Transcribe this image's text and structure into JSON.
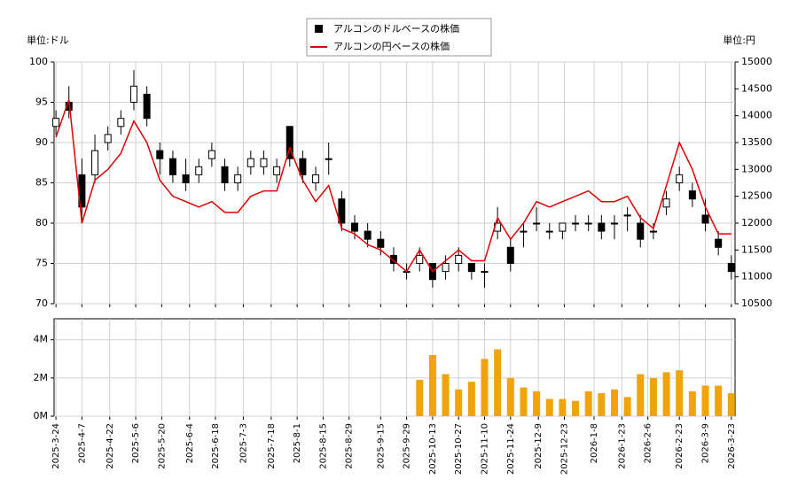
{
  "chart_data": [
    {
      "type": "candlestick",
      "legend_loc": "upper center",
      "ylabel": "単位:ドル",
      "y2label": "単位:円",
      "grid": true,
      "xlim": [
        "2025-03-23",
        "2026-03-25"
      ],
      "ylim": [
        70,
        100
      ],
      "yticks": [
        70,
        75,
        80,
        85,
        90,
        95,
        100
      ],
      "y2lim": [
        10500,
        15000
      ],
      "y2ticks": [
        10500,
        11000,
        11500,
        12000,
        12500,
        13000,
        13500,
        14000,
        14500,
        15000
      ],
      "x": [
        "2025-03-24",
        "2025-03-31",
        "2025-04-07",
        "2025-04-14",
        "2025-04-21",
        "2025-04-28",
        "2025-05-05",
        "2025-05-12",
        "2025-05-19",
        "2025-05-26",
        "2025-06-02",
        "2025-06-09",
        "2025-06-16",
        "2025-06-23",
        "2025-06-30",
        "2025-07-07",
        "2025-07-14",
        "2025-07-21",
        "2025-07-28",
        "2025-08-04",
        "2025-08-11",
        "2025-08-18",
        "2025-08-25",
        "2025-09-01",
        "2025-09-08",
        "2025-09-15",
        "2025-09-22",
        "2025-09-29",
        "2025-10-06",
        "2025-10-13",
        "2025-10-20",
        "2025-10-27",
        "2025-11-03",
        "2025-11-10",
        "2025-11-17",
        "2025-11-24",
        "2025-12-01",
        "2025-12-08",
        "2025-12-15",
        "2025-12-22",
        "2025-12-29",
        "2026-01-05",
        "2026-01-12",
        "2026-01-19",
        "2026-01-26",
        "2026-02-02",
        "2026-02-09",
        "2026-02-16",
        "2026-02-23",
        "2026-03-02",
        "2026-03-09",
        "2026-03-16",
        "2026-03-23"
      ],
      "series": [
        {
          "name": "アルコンのドルベースの株価",
          "color": "#000000",
          "open": [
            92,
            95,
            86,
            86,
            90,
            92,
            95,
            96,
            89,
            88,
            86,
            86,
            88,
            87,
            85,
            87,
            87,
            86,
            92,
            88,
            85,
            88,
            83,
            80,
            79,
            78,
            76,
            74,
            75,
            75,
            74,
            75,
            75,
            74,
            79,
            77,
            79,
            80,
            79,
            79,
            80,
            80,
            80,
            80,
            81,
            80,
            79,
            82,
            85,
            84,
            81,
            78,
            75
          ],
          "high": [
            94,
            97,
            88,
            91,
            92,
            94,
            99,
            97,
            90,
            89,
            88,
            88,
            90,
            88,
            87,
            89,
            89,
            88,
            92,
            89,
            87,
            90,
            84,
            81,
            80,
            79,
            77,
            75,
            77,
            75,
            76,
            77,
            75,
            75,
            82,
            78,
            80,
            82,
            80,
            80,
            81,
            81,
            81,
            81,
            82,
            81,
            80,
            84,
            87,
            85,
            83,
            79,
            76
          ],
          "low": [
            91,
            93,
            80,
            85,
            89,
            91,
            94,
            92,
            86,
            85,
            84,
            85,
            87,
            84,
            84,
            86,
            86,
            85,
            87,
            85,
            84,
            86,
            79,
            78,
            77,
            76,
            74,
            73,
            74,
            72,
            73,
            74,
            73,
            72,
            78,
            74,
            77,
            79,
            78,
            78,
            79,
            79,
            78,
            78,
            79,
            77,
            78,
            81,
            84,
            82,
            79,
            76,
            73
          ],
          "close": [
            93,
            94,
            82,
            89,
            91,
            93,
            97,
            93,
            88,
            86,
            85,
            87,
            89,
            85,
            86,
            88,
            88,
            87,
            88,
            86,
            86,
            88,
            80,
            79,
            78,
            77,
            75,
            74,
            76,
            73,
            75,
            76,
            74,
            74,
            80,
            75,
            79,
            80,
            79,
            80,
            80,
            80,
            79,
            80,
            81,
            78,
            79,
            83,
            86,
            83,
            80,
            77,
            74
          ]
        },
        {
          "name": "アルコンの円ベースの株価",
          "color": "#e00000",
          "axis": "y2",
          "values": [
            13600,
            14300,
            12000,
            12800,
            13000,
            13300,
            13900,
            13500,
            12800,
            12500,
            12400,
            12300,
            12400,
            12200,
            12200,
            12500,
            12600,
            12600,
            13400,
            12800,
            12400,
            12700,
            11900,
            11800,
            11600,
            11500,
            11300,
            11100,
            11500,
            11100,
            11300,
            11500,
            11300,
            11300,
            12100,
            11700,
            12000,
            12400,
            12300,
            12400,
            12500,
            12600,
            12400,
            12400,
            12500,
            12100,
            11900,
            12700,
            13500,
            13000,
            12300,
            11800,
            11800
          ]
        }
      ]
    },
    {
      "type": "bar",
      "color": "#f0a30a",
      "grid": true,
      "xlim": [
        "2025-03-23",
        "2026-03-25"
      ],
      "xticks": [
        {
          "value": "2025-03-24",
          "label": "2025-3-24"
        },
        {
          "value": "2025-04-07",
          "label": "2025-4-7"
        },
        {
          "value": "2025-04-22",
          "label": "2025-4-22"
        },
        {
          "value": "2025-05-06",
          "label": "2025-5-6"
        },
        {
          "value": "2025-05-20",
          "label": "2025-5-20"
        },
        {
          "value": "2025-06-04",
          "label": "2025-6-4"
        },
        {
          "value": "2025-06-18",
          "label": "2025-6-18"
        },
        {
          "value": "2025-07-03",
          "label": "2025-7-3"
        },
        {
          "value": "2025-07-18",
          "label": "2025-7-18"
        },
        {
          "value": "2025-08-01",
          "label": "2025-8-1"
        },
        {
          "value": "2025-08-15",
          "label": "2025-8-15"
        },
        {
          "value": "2025-08-29",
          "label": "2025-8-29"
        },
        {
          "value": "2025-09-15",
          "label": "2025-9-15"
        },
        {
          "value": "2025-09-29",
          "label": "2025-9-29"
        },
        {
          "value": "2025-10-13",
          "label": "2025-10-13"
        },
        {
          "value": "2025-10-27",
          "label": "2025-10-27"
        },
        {
          "value": "2025-11-10",
          "label": "2025-11-10"
        },
        {
          "value": "2025-11-24",
          "label": "2025-11-24"
        },
        {
          "value": "2025-12-09",
          "label": "2025-12-9"
        },
        {
          "value": "2025-12-23",
          "label": "2025-12-23"
        },
        {
          "value": "2026-01-08",
          "label": "2026-1-8"
        },
        {
          "value": "2026-01-23",
          "label": "2026-1-23"
        },
        {
          "value": "2026-02-06",
          "label": "2026-2-6"
        },
        {
          "value": "2026-02-23",
          "label": "2026-2-23"
        },
        {
          "value": "2026-03-09",
          "label": "2026-3-9"
        },
        {
          "value": "2026-03-23",
          "label": "2026-3-23"
        }
      ],
      "ylim": [
        0,
        5100000
      ],
      "yticks": [
        {
          "value": 0,
          "label": "0M"
        },
        {
          "value": 2000000,
          "label": "2M"
        },
        {
          "value": 4000000,
          "label": "4M"
        }
      ],
      "x": [
        "2025-10-06",
        "2025-10-13",
        "2025-10-20",
        "2025-10-27",
        "2025-11-03",
        "2025-11-10",
        "2025-11-17",
        "2025-11-24",
        "2025-12-01",
        "2025-12-08",
        "2025-12-15",
        "2025-12-22",
        "2025-12-29",
        "2026-01-05",
        "2026-01-12",
        "2026-01-19",
        "2026-01-26",
        "2026-02-02",
        "2026-02-09",
        "2026-02-16",
        "2026-02-23",
        "2026-03-02",
        "2026-03-09",
        "2026-03-16",
        "2026-03-23"
      ],
      "values": [
        1900000,
        3200000,
        2200000,
        1400000,
        1800000,
        3000000,
        3500000,
        2000000,
        1500000,
        1300000,
        900000,
        900000,
        800000,
        1300000,
        1200000,
        1400000,
        1000000,
        2200000,
        2000000,
        2300000,
        2400000,
        1300000,
        1600000,
        1600000,
        1200000
      ]
    }
  ]
}
